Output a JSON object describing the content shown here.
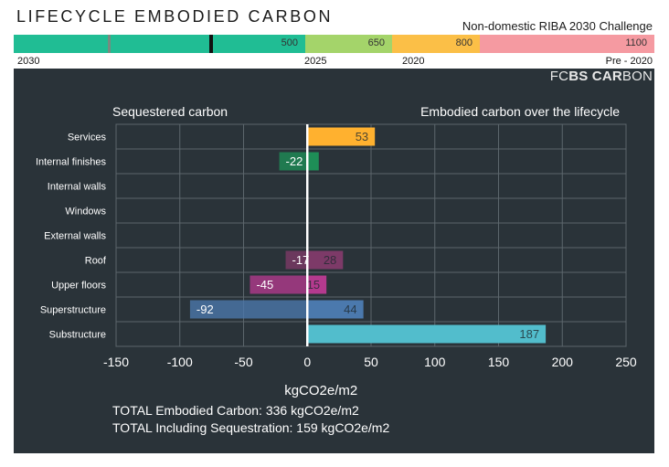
{
  "header": {
    "title": "LIFECYCLE EMBODIED CARBON",
    "subtitle": "Non-domestic RIBA 2030 Challenge"
  },
  "benchmark": {
    "segments": [
      {
        "label": "500",
        "color": "#20bd94"
      },
      {
        "label": "650",
        "color": "#a4d46a"
      },
      {
        "label": "800",
        "color": "#fbbf47"
      },
      {
        "label": "1100",
        "color": "#f59aa1"
      }
    ],
    "years": [
      "2030",
      "2025",
      "2020",
      "Pre - 2020"
    ]
  },
  "brand": {
    "prefix": "FC",
    "bold": "BS CAR",
    "suffix": "BON"
  },
  "chart_data": {
    "type": "bar",
    "orientation": "horizontal",
    "left_label": "Sequestered carbon",
    "right_label": "Embodied carbon over the lifecycle",
    "xlabel": "kgCO2e/m2",
    "xlim": [
      -150,
      250
    ],
    "xticks": [
      "-150",
      "-100",
      "-50",
      "0",
      "50",
      "100",
      "150",
      "200",
      "250"
    ],
    "categories": [
      "Services",
      "Internal finishes",
      "Internal walls",
      "Windows",
      "External walls",
      "Roof",
      "Upper floors",
      "Superstructure",
      "Substructure"
    ],
    "series": [
      {
        "name": "Sequestered",
        "values": [
          0,
          -22,
          0,
          0,
          0,
          -17,
          -45,
          -92,
          0
        ],
        "labels": [
          "",
          "-22",
          "",
          "",
          "",
          "-17",
          "-45",
          "-92",
          ""
        ]
      },
      {
        "name": "Embodied",
        "values": [
          53,
          9,
          0,
          0,
          0,
          28,
          15,
          44,
          187
        ],
        "labels": [
          "53",
          "",
          "",
          "",
          "",
          "28",
          "15",
          "44",
          "187"
        ]
      }
    ],
    "colors": [
      "#ffb12f",
      "#1e8e57",
      "#5a7f96",
      "#5a7f96",
      "#5a7f96",
      "#7d3a68",
      "#b43a8e",
      "#4b79ad",
      "#52bdcc"
    ]
  },
  "totals": {
    "embodied": "TOTAL Embodied Carbon: 336 kgCO2e/m2",
    "sequestration": "TOTAL Including Sequestration: 159 kgCO2e/m2"
  }
}
